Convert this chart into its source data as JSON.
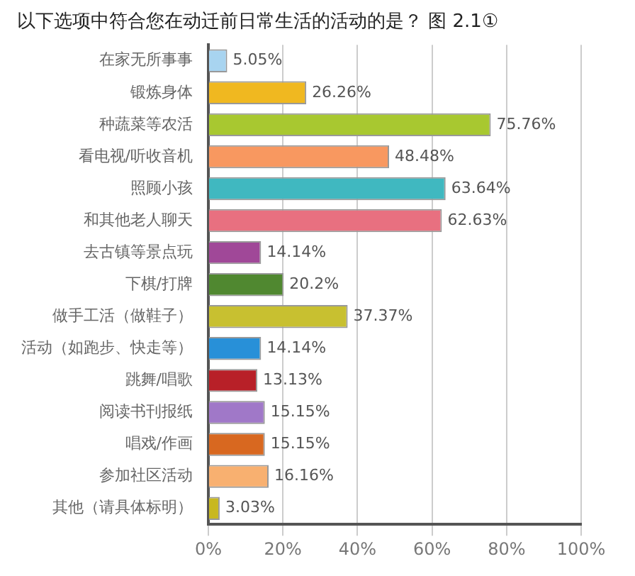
{
  "chart_data": {
    "type": "bar",
    "orientation": "horizontal",
    "title": "以下选项中符合您在动迁前日常生活的活动的是？ 图 2.1①",
    "categories": [
      "在家无所事事",
      "锻炼身体",
      "种蔬菜等农活",
      "看电视/听收音机",
      "照顾小孩",
      "和其他老人聊天",
      "去古镇等景点玩",
      "下棋/打牌",
      "做手工活（做鞋子）",
      "活动（如跑步、快走等）",
      "跳舞/唱歌",
      "阅读书刊报纸",
      "唱戏/作画",
      "参加社区活动",
      "其他（请具体标明）"
    ],
    "values": [
      5.05,
      26.26,
      75.76,
      48.48,
      63.64,
      62.63,
      14.14,
      20.2,
      37.37,
      14.14,
      13.13,
      15.15,
      15.15,
      16.16,
      3.03
    ],
    "value_labels": [
      "5.05%",
      "26.26%",
      "75.76%",
      "48.48%",
      "63.64%",
      "62.63%",
      "14.14%",
      "20.2%",
      "37.37%",
      "14.14%",
      "13.13%",
      "15.15%",
      "15.15%",
      "16.16%",
      "3.03%"
    ],
    "colors": [
      "#a8d4f0",
      "#f0b820",
      "#a8c830",
      "#f89860",
      "#40b8c0",
      "#e87080",
      "#a04898",
      "#508830",
      "#c8c030",
      "#2890d8",
      "#b82028",
      "#a078c8",
      "#d86820",
      "#f8b070",
      "#c8b820"
    ],
    "xlim": [
      0,
      100
    ],
    "xticks": [
      {
        "value": 0,
        "label": "0%"
      },
      {
        "value": 20,
        "label": "20%"
      },
      {
        "value": 40,
        "label": "40%"
      },
      {
        "value": 60,
        "label": "60%"
      },
      {
        "value": 80,
        "label": "80%"
      },
      {
        "value": 100,
        "label": "100%"
      }
    ],
    "grid": "x",
    "legend": false
  }
}
